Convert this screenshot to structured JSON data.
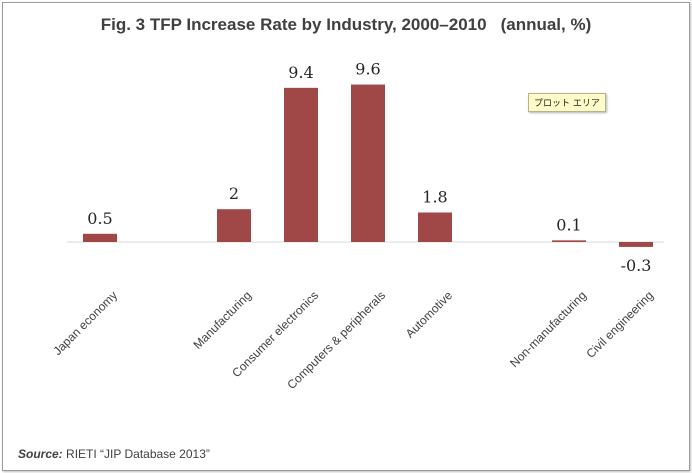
{
  "chart_data": {
    "type": "bar",
    "title": "Fig. 3 TFP Increase Rate by Industry, 2000–2010",
    "unit_label": "(annual, %)",
    "categories": [
      "Japan economy",
      "",
      "Manufacturing",
      "Consumer electronics",
      "Computers & peripherals",
      "Automotive",
      "",
      "Non-manufacturing",
      "Civil engineering"
    ],
    "values": [
      0.5,
      null,
      2,
      9.4,
      9.6,
      1.8,
      null,
      0.1,
      -0.3
    ],
    "data_labels": [
      "0.5",
      "",
      "2",
      "9.4",
      "9.6",
      "1.8",
      "",
      "0.1",
      "-0.3"
    ],
    "ylim": [
      -0.3,
      9.6
    ],
    "bar_color": "#a04848",
    "grid": false,
    "legend": "none"
  },
  "tooltip": "プロット エリア",
  "source": {
    "label": "Source:",
    "text": " RIETI “JIP Database 2013”"
  }
}
